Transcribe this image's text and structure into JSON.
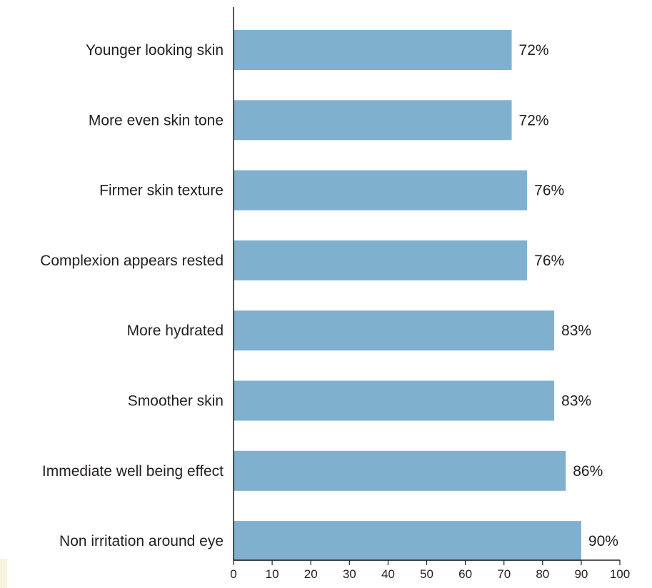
{
  "chart_data": {
    "type": "bar",
    "orientation": "horizontal",
    "categories": [
      "Younger looking skin",
      "More even skin tone",
      "Firmer skin texture",
      "Complexion appears rested",
      "More hydrated",
      "Smoother skin",
      "Immediate well being effect",
      "Non irritation around eye"
    ],
    "values": [
      72,
      72,
      76,
      76,
      83,
      83,
      86,
      90
    ],
    "value_labels": [
      "72%",
      "72%",
      "76%",
      "76%",
      "83%",
      "83%",
      "86%",
      "90%"
    ],
    "xlim": [
      0,
      100
    ],
    "x_ticks": [
      0,
      10,
      20,
      30,
      40,
      50,
      60,
      70,
      80,
      90,
      100
    ],
    "grid": false,
    "bar_color": "#7fb1cf",
    "axis_color": "#231f20"
  }
}
